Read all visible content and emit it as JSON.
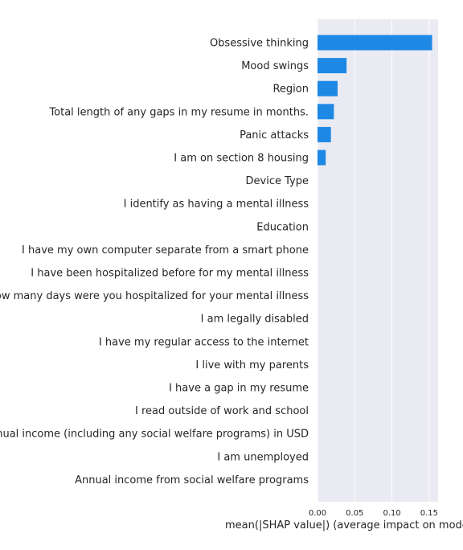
{
  "chart_data": {
    "type": "bar",
    "orientation": "horizontal",
    "categories": [
      "Obsessive thinking",
      "Mood swings",
      "Region",
      "Total length of any gaps in my resume in months.",
      "Panic attacks",
      "I am on section 8 housing",
      "Device Type",
      "I identify as having a mental illness",
      "Education",
      "I have my own computer separate from a smart phone",
      "I have been hospitalized before for my mental illness",
      "How many days were you hospitalized for your mental illness",
      "I am legally disabled",
      "I have my regular access to the internet",
      "I live with my parents",
      "I have a gap in my resume",
      "I read outside of work and school",
      "Annual income (including any social welfare programs) in USD",
      "I am unemployed",
      "Annual income from social welfare programs"
    ],
    "values": [
      0.154,
      0.039,
      0.027,
      0.022,
      0.018,
      0.011,
      0,
      0,
      0,
      0,
      0,
      0,
      0,
      0,
      0,
      0,
      0,
      0,
      0,
      0
    ],
    "xlabel": "mean(|SHAP value|) (average impact on model output magnitude)",
    "xlim": [
      0,
      0.162
    ],
    "xticks": [
      0,
      0.05,
      0.1,
      0.15
    ],
    "xtick_labels": [
      "0.00",
      "0.05",
      "0.10",
      "0.15"
    ],
    "grid": true,
    "bar_color": "#1e88e5",
    "plot_background": "#eaeaf2"
  }
}
